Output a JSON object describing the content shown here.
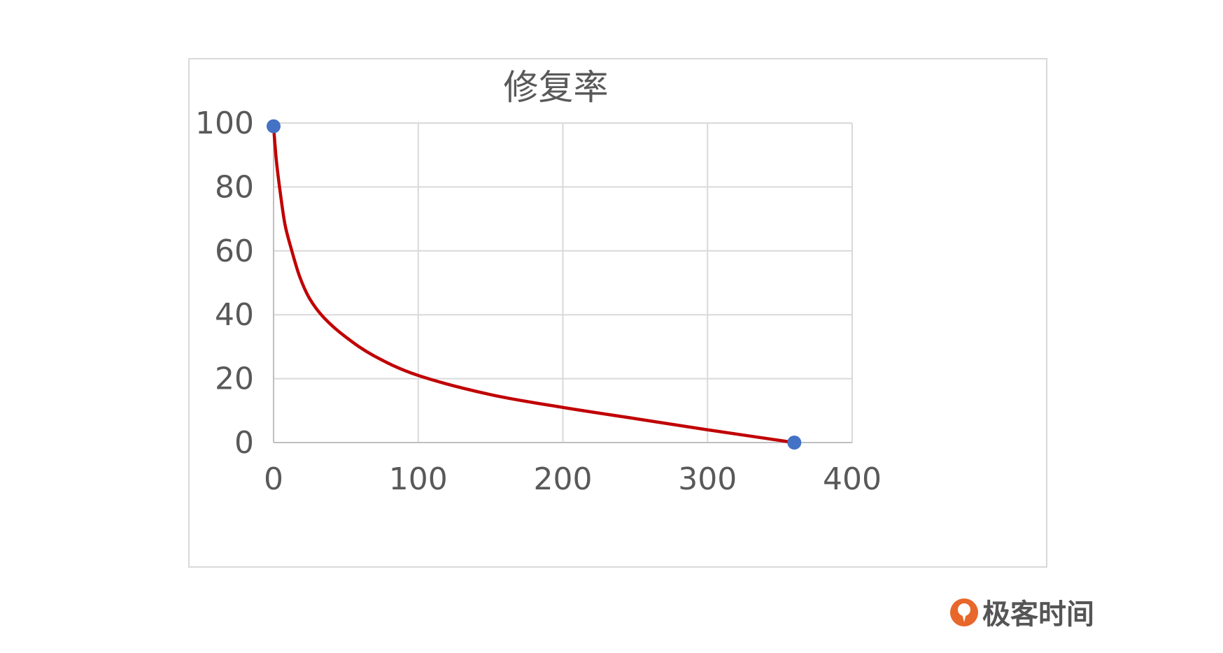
{
  "chart_data": {
    "type": "line",
    "title": "修复率",
    "xlabel": "",
    "ylabel": "",
    "xlim": [
      0,
      400
    ],
    "ylim": [
      0,
      100
    ],
    "x_ticks": [
      "0",
      "100",
      "200",
      "300",
      "400"
    ],
    "y_ticks": [
      "0",
      "20",
      "40",
      "60",
      "80",
      "100"
    ],
    "grid": true,
    "series": [
      {
        "color": "#c00000",
        "x": [
          0,
          2,
          5,
          8,
          12,
          18,
          25,
          35,
          50,
          70,
          100,
          150,
          200,
          250,
          300,
          360
        ],
        "y": [
          99,
          88,
          77,
          68,
          61,
          52,
          45,
          39,
          33,
          27,
          21,
          15,
          11,
          7.5,
          4,
          0
        ]
      }
    ],
    "markers": {
      "color": "#4472c4",
      "points": [
        {
          "x": 0,
          "y": 99
        },
        {
          "x": 360,
          "y": 0
        }
      ]
    }
  },
  "logo": {
    "text": "极客时间",
    "color": "#e8672a"
  }
}
